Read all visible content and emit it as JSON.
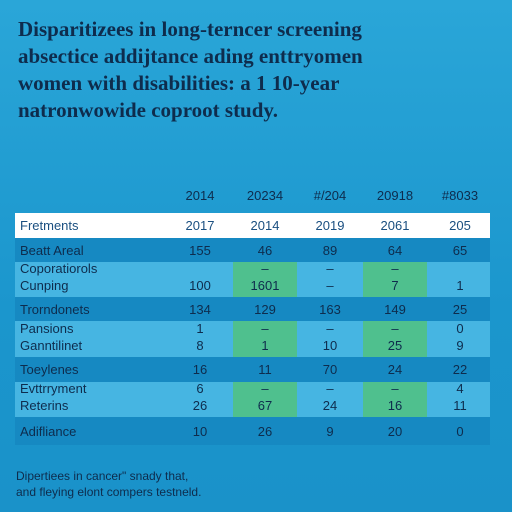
{
  "header": {
    "title": [
      "Disparitizees in long-terncer screening",
      "absectice addijtance ading enttryomen",
      "women with disabilities: a 1 10-year",
      "natronwowide coproot study."
    ]
  },
  "table": {
    "years": [
      "2014",
      "20234",
      "#/204",
      "20918",
      "#8033"
    ],
    "rows": [
      {
        "label": [
          "Fretments"
        ],
        "cells": [
          [
            "2017"
          ],
          [
            "2014"
          ],
          [
            "2019"
          ],
          [
            "2061"
          ],
          [
            "205"
          ]
        ]
      },
      {
        "label": [
          "Beatt Areal"
        ],
        "cells": [
          [
            "155"
          ],
          [
            "46"
          ],
          [
            "89"
          ],
          [
            "64"
          ],
          [
            "65"
          ]
        ]
      },
      {
        "label": [
          "Coporatiorols",
          "Cunping"
        ],
        "cells": [
          [
            "100"
          ],
          [
            "–",
            "1601"
          ],
          [
            "–",
            "–"
          ],
          [
            "–",
            "7"
          ],
          [
            "1"
          ]
        ]
      },
      {
        "label": [
          "Trorndonets"
        ],
        "cells": [
          [
            "134"
          ],
          [
            "129"
          ],
          [
            "163"
          ],
          [
            "149"
          ],
          [
            "25"
          ]
        ]
      },
      {
        "label": [
          "Pansions",
          "Ganntilinet"
        ],
        "cells": [
          [
            "1",
            "8"
          ],
          [
            "–",
            "1"
          ],
          [
            "–",
            "10"
          ],
          [
            "–",
            "25"
          ],
          [
            "0",
            "9"
          ]
        ]
      },
      {
        "label": [
          "Toeylenes"
        ],
        "cells": [
          [
            "16"
          ],
          [
            "11"
          ],
          [
            "70"
          ],
          [
            "24"
          ],
          [
            "22"
          ]
        ]
      },
      {
        "label": [
          "Evttrryment",
          "Reterins"
        ],
        "cells": [
          [
            "6",
            "26"
          ],
          [
            "–",
            "67"
          ],
          [
            "–",
            "24"
          ],
          [
            "–",
            "16"
          ],
          [
            "4",
            "11"
          ]
        ]
      },
      {
        "label": [
          "Adifliance"
        ],
        "cells": [
          [
            "10"
          ],
          [
            "26"
          ],
          [
            "9"
          ],
          [
            "20"
          ],
          [
            "0"
          ]
        ]
      }
    ]
  },
  "footer": {
    "lines": [
      "Dipertiees in cancer\" snady that,",
      "and fleying elont compers testneld."
    ]
  }
}
